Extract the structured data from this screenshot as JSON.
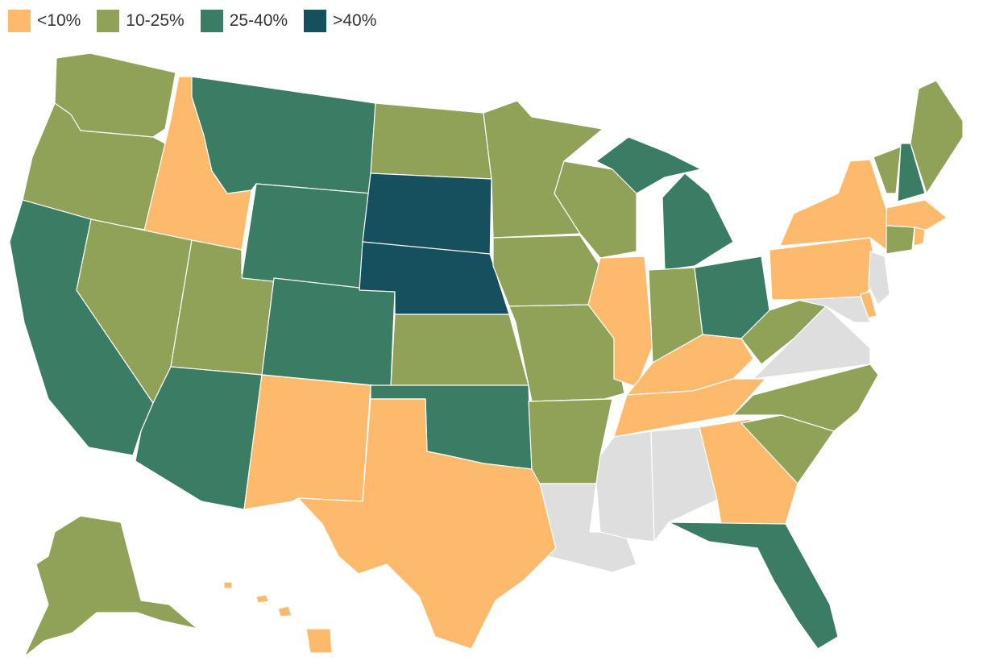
{
  "legend": {
    "items": [
      {
        "label": "<10%",
        "color": "#fdb96c"
      },
      {
        "label": "10-25%",
        "color": "#8fa257"
      },
      {
        "label": "25-40%",
        "color": "#3a7d64"
      },
      {
        "label": ">40%",
        "color": "#164f5e"
      }
    ],
    "no_data_color": "#dedede"
  },
  "map_data": {
    "type": "choropleth",
    "region": "United States",
    "classes": [
      "<10%",
      "10-25%",
      "25-40%",
      ">40%",
      "no data"
    ],
    "states": {
      "WA": "10-25%",
      "OR": "10-25%",
      "CA": "25-40%",
      "ID": "<10%",
      "NV": "10-25%",
      "UT": "10-25%",
      "AZ": "25-40%",
      "MT": "25-40%",
      "WY": "25-40%",
      "CO": "25-40%",
      "NM": "<10%",
      "ND": "10-25%",
      "SD": ">40%",
      "NE": ">40%",
      "KS": "10-25%",
      "OK": "25-40%",
      "TX": "<10%",
      "MN": "10-25%",
      "IA": "10-25%",
      "MO": "10-25%",
      "AR": "10-25%",
      "LA": "no data",
      "WI": "10-25%",
      "IL": "<10%",
      "MI": "25-40%",
      "IN": "10-25%",
      "OH": "25-40%",
      "KY": "<10%",
      "TN": "<10%",
      "MS": "no data",
      "AL": "no data",
      "GA": "<10%",
      "FL": "25-40%",
      "SC": "10-25%",
      "NC": "10-25%",
      "VA": "no data",
      "WV": "10-25%",
      "PA": "<10%",
      "NY": "<10%",
      "VT": "10-25%",
      "NH": "25-40%",
      "ME": "10-25%",
      "MA": "<10%",
      "CT": "10-25%",
      "RI": "<10%",
      "NJ": "no data",
      "DE": "<10%",
      "MD": "no data",
      "AK": "10-25%",
      "HI": "<10%"
    }
  }
}
